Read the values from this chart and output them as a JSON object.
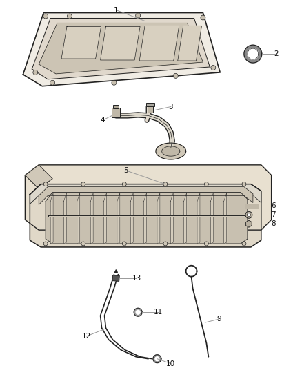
{
  "background_color": "#ffffff",
  "fig_width": 4.38,
  "fig_height": 5.33,
  "dpi": 100,
  "label_fontsize": 7.5,
  "ec": "#222222",
  "lc": "#888888",
  "fill_light": "#e8e0d0",
  "fill_mid": "#d0c8b8",
  "fill_dark": "#b8b0a0"
}
